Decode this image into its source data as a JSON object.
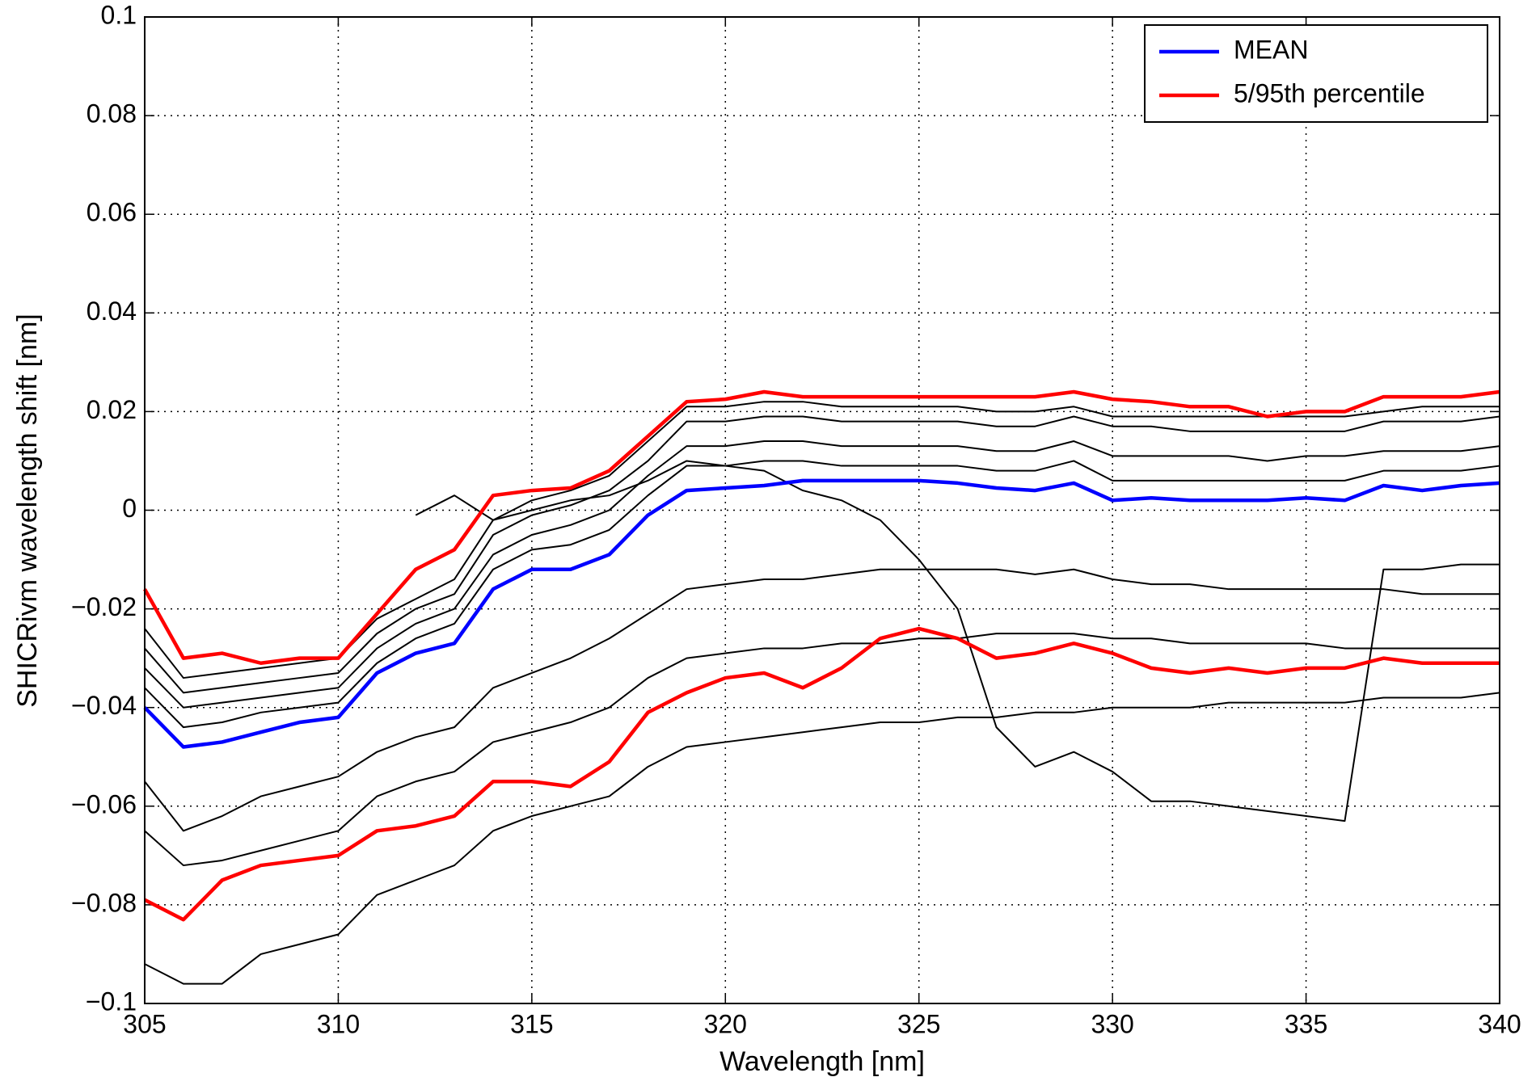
{
  "chart_data": {
    "type": "line",
    "xlabel": "Wavelength [nm]",
    "ylabel": "SHICRivm wavelength shift [nm]",
    "x": [
      305,
      306,
      307,
      308,
      309,
      310,
      311,
      312,
      313,
      314,
      315,
      316,
      317,
      318,
      319,
      320,
      321,
      322,
      323,
      324,
      325,
      326,
      327,
      328,
      329,
      330,
      331,
      332,
      333,
      334,
      335,
      336,
      337,
      338,
      339,
      340
    ],
    "xlim": [
      305,
      340
    ],
    "xticks": [
      305,
      310,
      315,
      320,
      325,
      330,
      335,
      340
    ],
    "ylim": [
      -0.1,
      0.1
    ],
    "yticks": [
      {
        "value": -0.1,
        "label": "−0.1"
      },
      {
        "value": -0.08,
        "label": "−0.08"
      },
      {
        "value": -0.06,
        "label": "−0.06"
      },
      {
        "value": -0.04,
        "label": "−0.04"
      },
      {
        "value": -0.02,
        "label": "−0.02"
      },
      0,
      0.02,
      0.04,
      0.06,
      0.08,
      0.1
    ],
    "grid": true,
    "legend": "upper right",
    "series": [
      {
        "color": "#000000",
        "values": [
          -0.028,
          -0.037,
          -0.036,
          -0.035,
          -0.034,
          -0.033,
          -0.025,
          -0.02,
          -0.017,
          -0.005,
          -0.001,
          0.001,
          0.004,
          0.01,
          0.018,
          0.018,
          0.019,
          0.019,
          0.018,
          0.018,
          0.018,
          0.018,
          0.017,
          0.017,
          0.019,
          0.017,
          0.017,
          0.016,
          0.016,
          0.016,
          0.016,
          0.016,
          0.018,
          0.018,
          0.018,
          0.019
        ]
      },
      {
        "color": "#000000",
        "values": [
          -0.032,
          -0.04,
          -0.039,
          -0.038,
          -0.037,
          -0.036,
          -0.028,
          -0.023,
          -0.02,
          -0.009,
          -0.005,
          -0.003,
          0.0,
          0.007,
          0.013,
          0.013,
          0.014,
          0.014,
          0.013,
          0.013,
          0.013,
          0.013,
          0.012,
          0.012,
          0.014,
          0.011,
          0.011,
          0.011,
          0.011,
          0.01,
          0.011,
          0.011,
          0.012,
          0.012,
          0.012,
          0.013
        ]
      },
      {
        "color": "#000000",
        "values": [
          -0.036,
          -0.044,
          -0.043,
          -0.041,
          -0.04,
          -0.039,
          -0.031,
          -0.026,
          -0.023,
          -0.012,
          -0.008,
          -0.007,
          -0.004,
          0.003,
          0.009,
          0.009,
          0.01,
          0.01,
          0.009,
          0.009,
          0.009,
          0.009,
          0.008,
          0.008,
          0.01,
          0.006,
          0.006,
          0.006,
          0.006,
          0.006,
          0.006,
          0.006,
          0.008,
          0.008,
          0.008,
          0.009
        ]
      },
      {
        "color": "#000000",
        "values": [
          -0.055,
          -0.065,
          -0.062,
          -0.058,
          -0.056,
          -0.054,
          -0.049,
          -0.046,
          -0.044,
          -0.036,
          -0.033,
          -0.03,
          -0.026,
          -0.021,
          -0.016,
          -0.015,
          -0.014,
          -0.014,
          -0.013,
          -0.012,
          -0.012,
          -0.012,
          -0.012,
          -0.013,
          -0.012,
          -0.014,
          -0.015,
          -0.015,
          -0.016,
          -0.016,
          -0.016,
          -0.016,
          -0.016,
          -0.017,
          -0.017,
          -0.017
        ]
      },
      {
        "color": "#000000",
        "values": [
          -0.065,
          -0.072,
          -0.071,
          -0.069,
          -0.067,
          -0.065,
          -0.058,
          -0.055,
          -0.053,
          -0.047,
          -0.045,
          -0.043,
          -0.04,
          -0.034,
          -0.03,
          -0.029,
          -0.028,
          -0.028,
          -0.027,
          -0.027,
          -0.026,
          -0.026,
          -0.025,
          -0.025,
          -0.025,
          -0.026,
          -0.026,
          -0.027,
          -0.027,
          -0.027,
          -0.027,
          -0.028,
          -0.028,
          -0.028,
          -0.028,
          -0.028
        ]
      },
      {
        "color": "#000000",
        "values": [
          -0.092,
          -0.096,
          -0.096,
          -0.09,
          -0.088,
          -0.086,
          -0.078,
          -0.075,
          -0.072,
          -0.065,
          -0.062,
          -0.06,
          -0.058,
          -0.052,
          -0.048,
          -0.047,
          -0.046,
          -0.045,
          -0.044,
          -0.043,
          -0.043,
          -0.042,
          -0.042,
          -0.041,
          -0.041,
          -0.04,
          -0.04,
          -0.04,
          -0.039,
          -0.039,
          -0.039,
          -0.039,
          -0.038,
          -0.038,
          -0.038,
          -0.037
        ]
      },
      {
        "color": "#000000",
        "values": [
          null,
          null,
          null,
          null,
          null,
          null,
          null,
          -0.001,
          0.003,
          -0.002,
          0.0,
          0.002,
          0.003,
          0.006,
          0.01,
          0.009,
          0.008,
          0.004,
          0.002,
          -0.002,
          -0.01,
          -0.02,
          -0.044,
          -0.052,
          -0.049,
          -0.053,
          -0.059,
          -0.059,
          -0.06,
          -0.061,
          -0.062,
          -0.063,
          -0.012,
          -0.012,
          -0.011,
          -0.011
        ]
      },
      {
        "color": "#000000",
        "values": [
          -0.024,
          -0.034,
          -0.033,
          -0.032,
          -0.031,
          -0.03,
          -0.022,
          -0.018,
          -0.014,
          -0.002,
          0.002,
          0.004,
          0.007,
          0.014,
          0.021,
          0.021,
          0.022,
          0.022,
          0.021,
          0.021,
          0.021,
          0.021,
          0.02,
          0.02,
          0.021,
          0.019,
          0.019,
          0.019,
          0.019,
          0.019,
          0.019,
          0.019,
          0.02,
          0.021,
          0.021,
          0.021
        ]
      },
      {
        "name": "MEAN",
        "color": "#0000ff",
        "values": [
          -0.04,
          -0.048,
          -0.047,
          -0.045,
          -0.043,
          -0.042,
          -0.033,
          -0.029,
          -0.027,
          -0.016,
          -0.012,
          -0.012,
          -0.009,
          -0.001,
          0.004,
          0.0045,
          0.005,
          0.006,
          0.006,
          0.006,
          0.006,
          0.0055,
          0.0045,
          0.004,
          0.0055,
          0.002,
          0.0025,
          0.002,
          0.002,
          0.002,
          0.0025,
          0.002,
          0.005,
          0.004,
          0.005,
          0.0055
        ]
      },
      {
        "name": "5/95th percentile",
        "color": "#ff0000",
        "values": [
          -0.016,
          -0.03,
          -0.029,
          -0.031,
          -0.03,
          -0.03,
          -0.021,
          -0.012,
          -0.008,
          0.003,
          0.004,
          0.0045,
          0.008,
          0.015,
          0.022,
          0.0225,
          0.024,
          0.023,
          0.023,
          0.023,
          0.023,
          0.023,
          0.023,
          0.023,
          0.024,
          0.0225,
          0.022,
          0.021,
          0.021,
          0.019,
          0.02,
          0.02,
          0.023,
          0.023,
          0.023,
          0.024
        ]
      },
      {
        "color": "#ff0000",
        "values": [
          -0.079,
          -0.083,
          -0.075,
          -0.072,
          -0.071,
          -0.07,
          -0.065,
          -0.064,
          -0.062,
          -0.055,
          -0.055,
          -0.056,
          -0.051,
          -0.041,
          -0.037,
          -0.034,
          -0.033,
          -0.036,
          -0.032,
          -0.026,
          -0.024,
          -0.026,
          -0.03,
          -0.029,
          -0.027,
          -0.029,
          -0.032,
          -0.033,
          -0.032,
          -0.033,
          -0.032,
          -0.032,
          -0.03,
          -0.031,
          -0.031,
          -0.031
        ]
      }
    ]
  }
}
